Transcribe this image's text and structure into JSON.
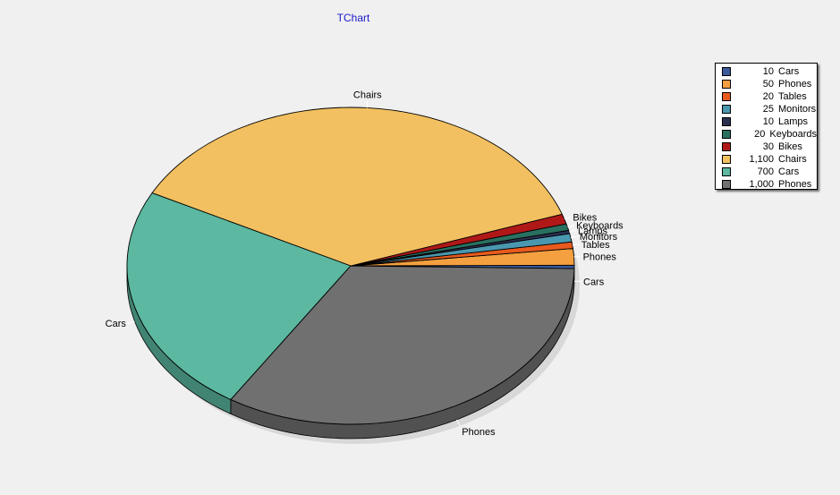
{
  "chart_title": "TChart",
  "chart_data": {
    "type": "pie",
    "title": "TChart",
    "slices": [
      {
        "label": "Cars",
        "value": 10,
        "value_label": "10",
        "color": "#3a5a9a"
      },
      {
        "label": "Phones",
        "value": 50,
        "value_label": "50",
        "color": "#f4a040"
      },
      {
        "label": "Tables",
        "value": 20,
        "value_label": "20",
        "color": "#e85a1e"
      },
      {
        "label": "Monitors",
        "value": 25,
        "value_label": "25",
        "color": "#4a98b0"
      },
      {
        "label": "Lamps",
        "value": 10,
        "value_label": "10",
        "color": "#2a3050"
      },
      {
        "label": "Keyboards",
        "value": 20,
        "value_label": "20",
        "color": "#2a7060"
      },
      {
        "label": "Bikes",
        "value": 30,
        "value_label": "30",
        "color": "#b01818"
      },
      {
        "label": "Chairs",
        "value": 1100,
        "value_label": "1,100",
        "color": "#f2c060"
      },
      {
        "label": "Cars",
        "value": 700,
        "value_label": "700",
        "color": "#5cb8a0"
      },
      {
        "label": "Phones",
        "value": 1000,
        "value_label": "1,000",
        "color": "#707070"
      }
    ],
    "legend_position": "top-right",
    "rendering": "3d"
  }
}
